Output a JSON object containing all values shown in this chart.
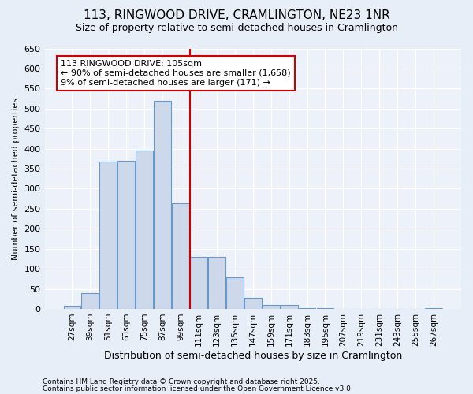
{
  "title1": "113, RINGWOOD DRIVE, CRAMLINGTON, NE23 1NR",
  "title2": "Size of property relative to semi-detached houses in Cramlington",
  "xlabel": "Distribution of semi-detached houses by size in Cramlington",
  "ylabel": "Number of semi-detached properties",
  "categories": [
    "27sqm",
    "39sqm",
    "51sqm",
    "63sqm",
    "75sqm",
    "87sqm",
    "99sqm",
    "111sqm",
    "123sqm",
    "135sqm",
    "147sqm",
    "159sqm",
    "171sqm",
    "183sqm",
    "195sqm",
    "207sqm",
    "219sqm",
    "231sqm",
    "243sqm",
    "255sqm",
    "267sqm"
  ],
  "values": [
    8,
    40,
    367,
    370,
    395,
    520,
    263,
    130,
    130,
    78,
    28,
    10,
    10,
    2,
    1,
    0,
    0,
    0,
    0,
    0,
    2
  ],
  "bar_color": "#cdd9ea",
  "bar_edge_color": "#6699cc",
  "vline_color": "#cc0000",
  "annotation_line1": "113 RINGWOOD DRIVE: 105sqm",
  "annotation_line2": "← 90% of semi-detached houses are smaller (1,658)",
  "annotation_line3": "9% of semi-detached houses are larger (171) →",
  "annotation_box_color": "#ffffff",
  "annotation_box_edge": "#cc0000",
  "ylim": [
    0,
    650
  ],
  "yticks": [
    0,
    50,
    100,
    150,
    200,
    250,
    300,
    350,
    400,
    450,
    500,
    550,
    600,
    650
  ],
  "bg_color": "#e8eef8",
  "plot_bg_color": "#edf1f9",
  "footer1": "Contains HM Land Registry data © Crown copyright and database right 2025.",
  "footer2": "Contains public sector information licensed under the Open Government Licence v3.0."
}
